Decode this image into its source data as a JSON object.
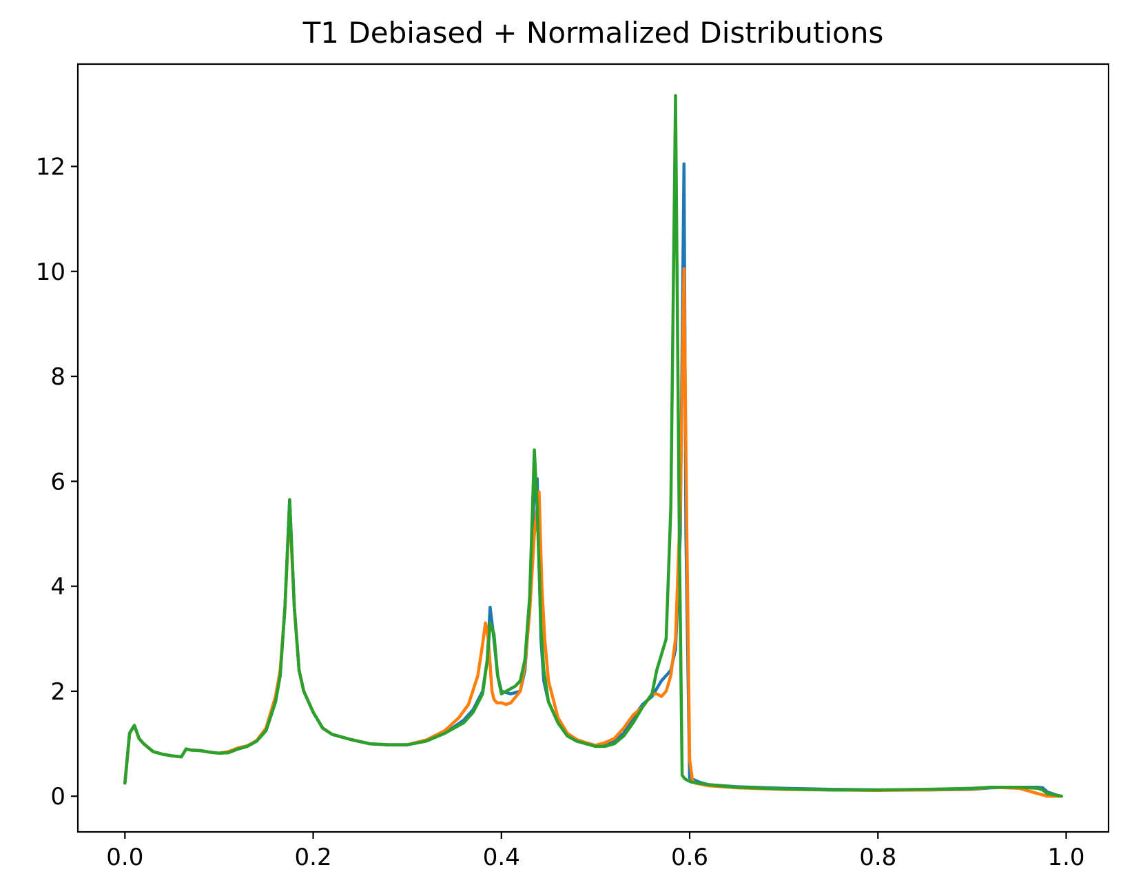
{
  "chart_data": {
    "type": "line",
    "title": "T1 Debiased + Normalized Distributions",
    "xlabel": "",
    "ylabel": "",
    "xlim": [
      -0.05,
      1.045
    ],
    "ylim": [
      -0.68,
      13.95
    ],
    "xticks": [
      {
        "value": 0.0,
        "label": "0.0"
      },
      {
        "value": 0.2,
        "label": "0.2"
      },
      {
        "value": 0.4,
        "label": "0.4"
      },
      {
        "value": 0.6,
        "label": "0.6"
      },
      {
        "value": 0.8,
        "label": "0.8"
      },
      {
        "value": 1.0,
        "label": "1.0"
      }
    ],
    "yticks": [
      {
        "value": 0,
        "label": "0"
      },
      {
        "value": 2,
        "label": "2"
      },
      {
        "value": 4,
        "label": "4"
      },
      {
        "value": 6,
        "label": "6"
      },
      {
        "value": 8,
        "label": "8"
      },
      {
        "value": 10,
        "label": "10"
      },
      {
        "value": 12,
        "label": "12"
      }
    ],
    "grid": false,
    "legend": "none",
    "series": [
      {
        "color": "#1f77b4",
        "x": [
          0.0,
          0.005,
          0.01,
          0.015,
          0.02,
          0.03,
          0.04,
          0.05,
          0.06,
          0.065,
          0.07,
          0.08,
          0.09,
          0.1,
          0.11,
          0.12,
          0.13,
          0.14,
          0.15,
          0.16,
          0.165,
          0.17,
          0.175,
          0.18,
          0.185,
          0.19,
          0.2,
          0.21,
          0.22,
          0.24,
          0.26,
          0.28,
          0.3,
          0.32,
          0.34,
          0.36,
          0.37,
          0.38,
          0.385,
          0.388,
          0.392,
          0.396,
          0.4,
          0.41,
          0.42,
          0.425,
          0.43,
          0.435,
          0.438,
          0.44,
          0.442,
          0.445,
          0.45,
          0.46,
          0.47,
          0.48,
          0.49,
          0.5,
          0.51,
          0.52,
          0.53,
          0.54,
          0.55,
          0.56,
          0.57,
          0.575,
          0.58,
          0.585,
          0.59,
          0.594,
          0.596,
          0.6,
          0.61,
          0.62,
          0.65,
          0.7,
          0.75,
          0.8,
          0.85,
          0.9,
          0.92,
          0.95,
          0.97,
          0.975,
          0.98,
          0.99,
          0.995
        ],
        "y": [
          0.25,
          1.2,
          1.35,
          1.1,
          1.0,
          0.85,
          0.8,
          0.77,
          0.75,
          0.9,
          0.88,
          0.87,
          0.84,
          0.82,
          0.83,
          0.9,
          0.95,
          1.05,
          1.25,
          1.8,
          2.3,
          3.6,
          5.65,
          3.6,
          2.4,
          2.0,
          1.6,
          1.3,
          1.18,
          1.08,
          1.0,
          0.98,
          0.98,
          1.05,
          1.2,
          1.45,
          1.65,
          2.0,
          2.6,
          3.6,
          3.0,
          2.3,
          2.0,
          1.95,
          2.0,
          2.4,
          3.6,
          5.9,
          6.05,
          4.5,
          3.0,
          2.2,
          1.8,
          1.4,
          1.15,
          1.05,
          1.0,
          0.95,
          0.97,
          1.05,
          1.2,
          1.5,
          1.75,
          1.9,
          2.2,
          2.3,
          2.4,
          2.8,
          5.0,
          12.05,
          5.0,
          0.35,
          0.27,
          0.22,
          0.18,
          0.15,
          0.13,
          0.12,
          0.12,
          0.13,
          0.16,
          0.17,
          0.17,
          0.16,
          0.08,
          0.02,
          0.0
        ]
      },
      {
        "color": "#ff7f0e",
        "x": [
          0.0,
          0.005,
          0.01,
          0.015,
          0.02,
          0.03,
          0.04,
          0.05,
          0.06,
          0.065,
          0.07,
          0.08,
          0.09,
          0.1,
          0.11,
          0.12,
          0.13,
          0.14,
          0.15,
          0.16,
          0.165,
          0.17,
          0.175,
          0.18,
          0.185,
          0.19,
          0.2,
          0.21,
          0.22,
          0.24,
          0.26,
          0.28,
          0.3,
          0.32,
          0.34,
          0.355,
          0.365,
          0.375,
          0.38,
          0.383,
          0.386,
          0.39,
          0.392,
          0.395,
          0.4,
          0.405,
          0.41,
          0.42,
          0.425,
          0.43,
          0.435,
          0.44,
          0.443,
          0.446,
          0.45,
          0.46,
          0.47,
          0.48,
          0.49,
          0.5,
          0.51,
          0.52,
          0.53,
          0.54,
          0.55,
          0.56,
          0.565,
          0.57,
          0.575,
          0.58,
          0.585,
          0.59,
          0.594,
          0.597,
          0.6,
          0.603,
          0.606,
          0.62,
          0.65,
          0.7,
          0.75,
          0.8,
          0.85,
          0.9,
          0.92,
          0.95,
          0.96,
          0.97,
          0.98,
          0.99,
          0.995
        ],
        "y": [
          0.25,
          1.2,
          1.35,
          1.1,
          1.0,
          0.85,
          0.8,
          0.77,
          0.75,
          0.9,
          0.88,
          0.87,
          0.84,
          0.82,
          0.85,
          0.92,
          0.96,
          1.06,
          1.3,
          1.9,
          2.4,
          3.6,
          5.5,
          3.6,
          2.4,
          2.0,
          1.6,
          1.3,
          1.18,
          1.08,
          1.0,
          0.98,
          0.98,
          1.07,
          1.25,
          1.5,
          1.75,
          2.3,
          2.9,
          3.3,
          3.0,
          2.0,
          1.85,
          1.78,
          1.78,
          1.75,
          1.78,
          2.0,
          2.5,
          3.5,
          5.0,
          5.8,
          4.0,
          3.0,
          2.2,
          1.5,
          1.2,
          1.08,
          1.02,
          0.97,
          1.02,
          1.1,
          1.3,
          1.55,
          1.7,
          1.95,
          1.95,
          1.9,
          2.0,
          2.3,
          3.0,
          5.5,
          10.05,
          5.0,
          0.7,
          0.3,
          0.25,
          0.2,
          0.16,
          0.13,
          0.12,
          0.11,
          0.12,
          0.14,
          0.17,
          0.15,
          0.1,
          0.05,
          0.0,
          0.0,
          0.0
        ]
      },
      {
        "color": "#2ca02c",
        "x": [
          0.0,
          0.005,
          0.01,
          0.015,
          0.02,
          0.03,
          0.04,
          0.05,
          0.06,
          0.065,
          0.07,
          0.08,
          0.09,
          0.1,
          0.11,
          0.12,
          0.13,
          0.14,
          0.15,
          0.16,
          0.165,
          0.17,
          0.175,
          0.18,
          0.185,
          0.19,
          0.2,
          0.21,
          0.22,
          0.24,
          0.26,
          0.28,
          0.3,
          0.32,
          0.34,
          0.36,
          0.37,
          0.38,
          0.385,
          0.388,
          0.392,
          0.396,
          0.4,
          0.41,
          0.415,
          0.42,
          0.425,
          0.43,
          0.435,
          0.438,
          0.442,
          0.445,
          0.45,
          0.46,
          0.47,
          0.48,
          0.49,
          0.5,
          0.51,
          0.52,
          0.53,
          0.54,
          0.55,
          0.56,
          0.565,
          0.57,
          0.575,
          0.58,
          0.585,
          0.589,
          0.592,
          0.595,
          0.598,
          0.602,
          0.62,
          0.65,
          0.7,
          0.75,
          0.8,
          0.85,
          0.9,
          0.92,
          0.95,
          0.96,
          0.97,
          0.975,
          0.98,
          0.99,
          0.995
        ],
        "y": [
          0.25,
          1.2,
          1.35,
          1.1,
          1.0,
          0.85,
          0.8,
          0.77,
          0.75,
          0.9,
          0.88,
          0.87,
          0.84,
          0.82,
          0.83,
          0.9,
          0.95,
          1.05,
          1.25,
          1.8,
          2.3,
          3.6,
          5.65,
          3.6,
          2.4,
          2.0,
          1.6,
          1.3,
          1.18,
          1.08,
          1.0,
          0.98,
          0.98,
          1.05,
          1.2,
          1.4,
          1.6,
          1.95,
          2.6,
          3.3,
          3.1,
          2.3,
          1.95,
          2.05,
          2.1,
          2.2,
          2.6,
          3.8,
          6.6,
          5.5,
          3.2,
          2.4,
          1.8,
          1.4,
          1.15,
          1.05,
          1.0,
          0.95,
          0.95,
          1.0,
          1.15,
          1.4,
          1.7,
          1.95,
          2.4,
          2.7,
          3.0,
          5.5,
          13.35,
          5.0,
          0.4,
          0.33,
          0.3,
          0.27,
          0.22,
          0.17,
          0.14,
          0.12,
          0.12,
          0.13,
          0.15,
          0.17,
          0.17,
          0.16,
          0.15,
          0.12,
          0.05,
          0.02,
          0.0
        ]
      }
    ]
  }
}
